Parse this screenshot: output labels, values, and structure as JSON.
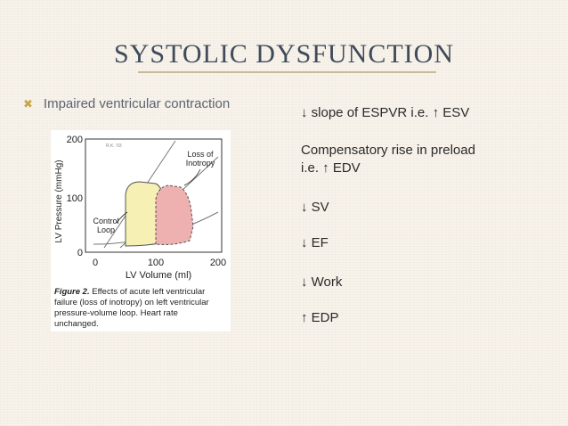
{
  "slide": {
    "title": "SYSTOLIC DYSFUNCTION",
    "bullet": "Impaired ventricular contraction"
  },
  "right_items": [
    "↓ slope of ESPVR i.e. ↑ ESV",
    "Compensatory rise in preload",
    "i.e. ↑ EDV",
    "↓ SV",
    "↓ EF",
    "↓ Work",
    "↑ EDP"
  ],
  "figure": {
    "y_axis_label": "LV Pressure (mmHg)",
    "x_axis_label": "LV Volume (ml)",
    "y_ticks": [
      "200",
      "100",
      "0"
    ],
    "x_ticks": [
      "0",
      "100",
      "200"
    ],
    "label_loss": "Loss of",
    "label_inotropy": "Inotropy",
    "label_control": "Control",
    "label_loop": "Loop",
    "small_mark": "R.K. '03",
    "caption_bold": "Figure 2.",
    "caption_lines": [
      " Effects of acute left ventricular",
      "failure (loss of inotropy) on left ventricular",
      "pressure-volume loop. Heart rate",
      "unchanged."
    ]
  },
  "colors": {
    "title": "#404b5a",
    "control_loop_fill": "#f6f0b4",
    "loss_loop_fill": "#efb0b0",
    "bullet_marker": "#c8a64a"
  }
}
